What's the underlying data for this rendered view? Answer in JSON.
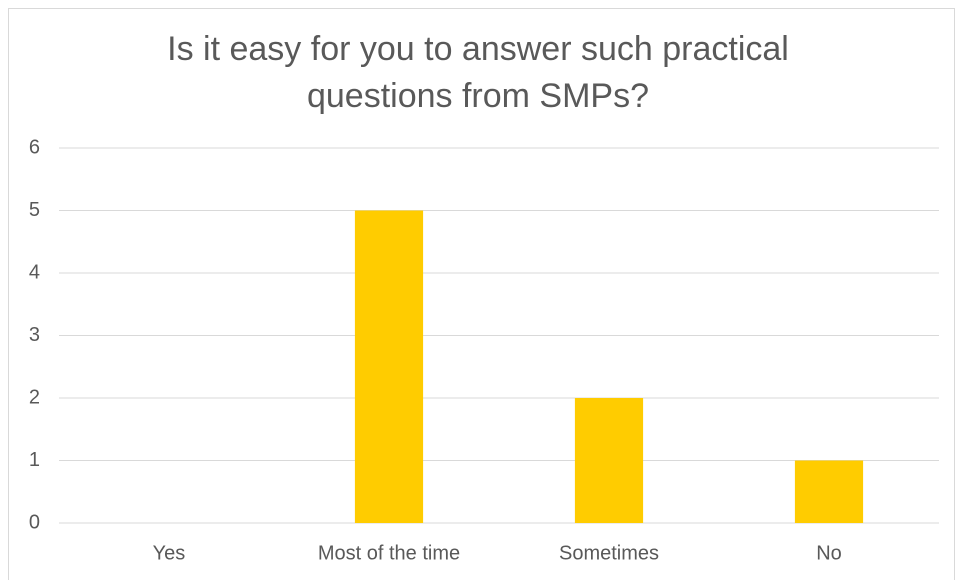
{
  "chart_data": {
    "type": "bar",
    "title": "Is it easy for you to answer such practical questions from SMPs?",
    "categories": [
      "Yes",
      "Most of the time",
      "Sometimes",
      "No"
    ],
    "values": [
      0,
      5,
      2,
      1
    ],
    "color": "#ffcc00",
    "ylim": [
      0,
      6
    ],
    "yticks": [
      0,
      1,
      2,
      3,
      4,
      5,
      6
    ],
    "grid": true
  }
}
